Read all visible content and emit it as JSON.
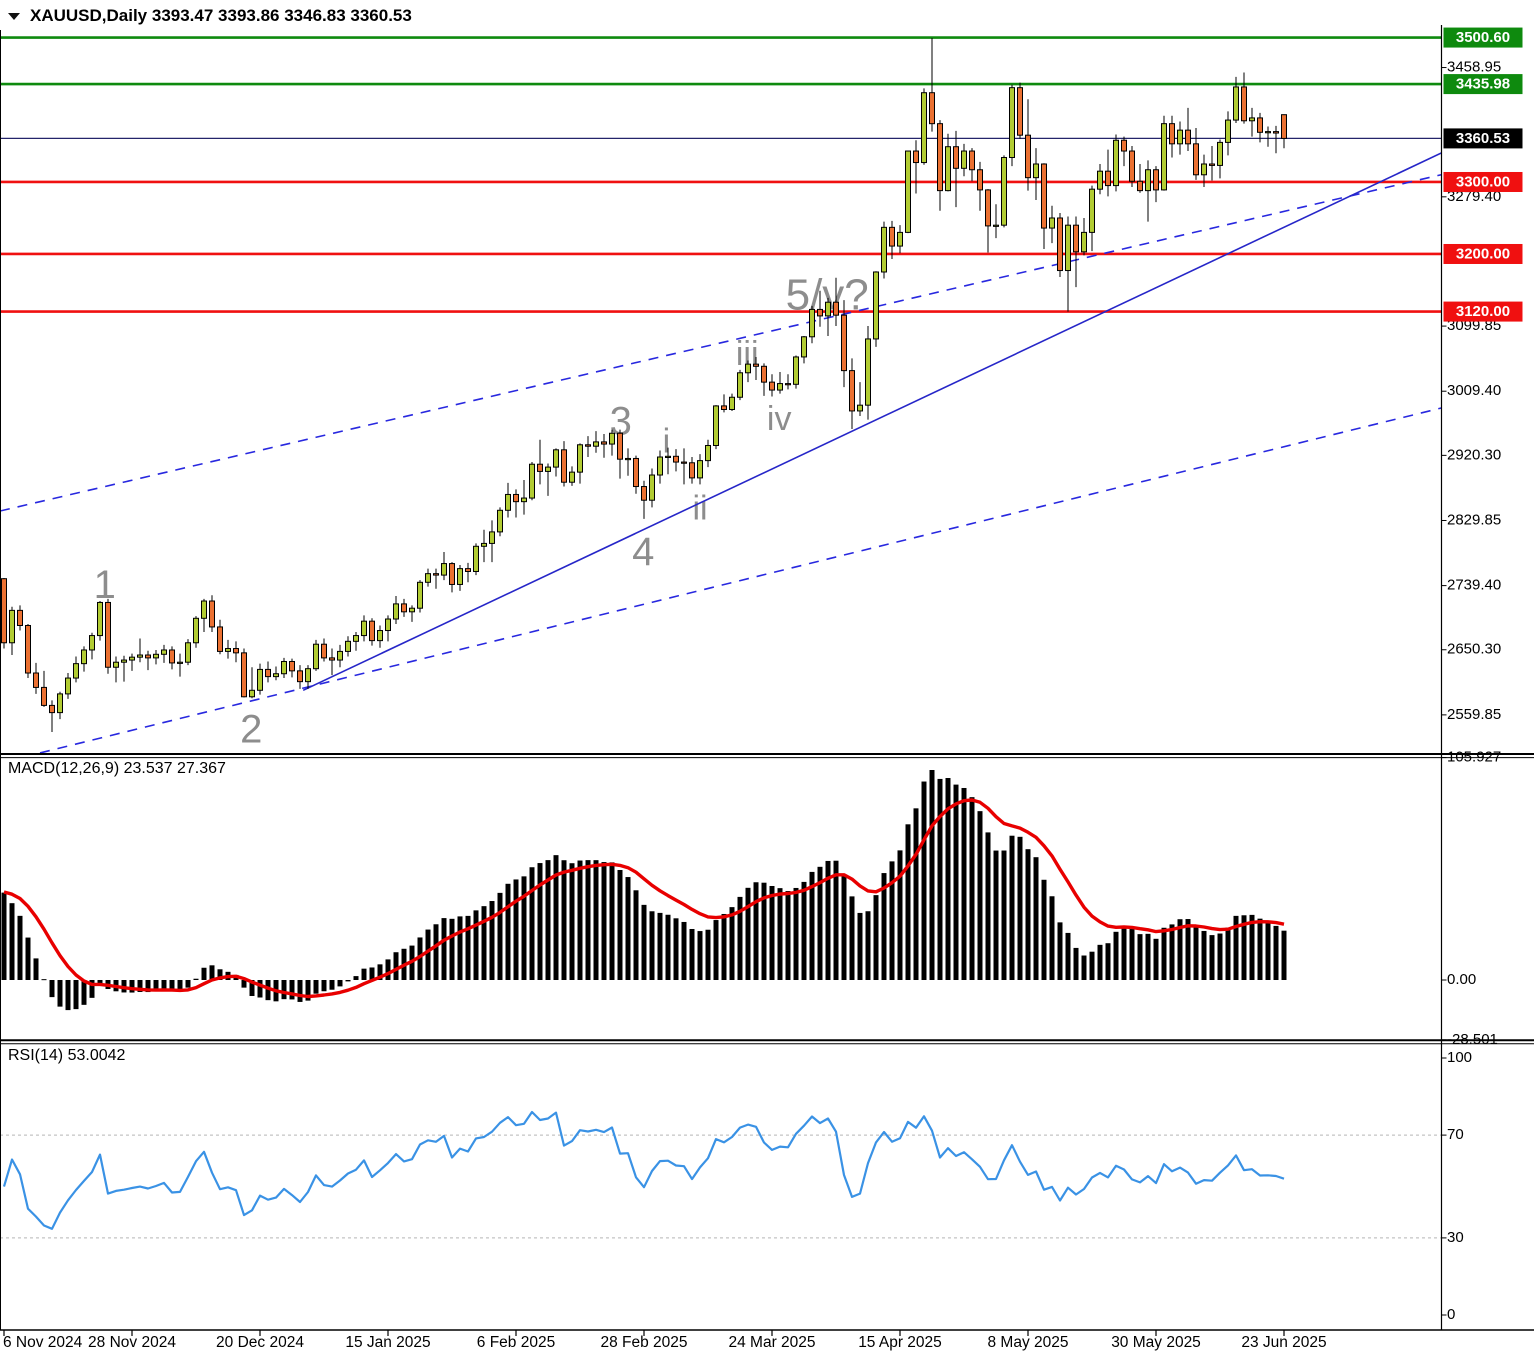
{
  "window": {
    "title": "XAUUSD,Daily  3393.47 3393.86 3346.83 3360.53"
  },
  "chart_data": {
    "type": "candlestick-with-indicators",
    "symbol": "XAUUSD",
    "timeframe": "Daily",
    "ohlc_display": {
      "open": "3393.47",
      "high": "3393.86",
      "low": "3346.83",
      "close": "3360.53"
    },
    "colors": {
      "bull": "#B2CC33",
      "bear": "#EB7132",
      "outline": "#000000",
      "wave_label": "#8D8D8D"
    },
    "price_axis": {
      "visible_range": [
        2506.9,
        3511.1
      ],
      "plain_labels": [
        {
          "value": 3458.95,
          "text": "3458.95"
        },
        {
          "value": 3279.4,
          "text": "3279.40"
        },
        {
          "value": 3099.85,
          "text": "3099.85"
        },
        {
          "value": 3009.4,
          "text": "3009.40"
        },
        {
          "value": 2920.3,
          "text": "2920.30"
        },
        {
          "value": 2829.85,
          "text": "2829.85"
        },
        {
          "value": 2739.4,
          "text": "2739.40"
        },
        {
          "value": 2650.3,
          "text": "2650.30"
        },
        {
          "value": 2559.85,
          "text": "2559.85"
        }
      ],
      "badges": [
        {
          "value": 3500.6,
          "text": "3500.60",
          "bg": "#0E8A0E"
        },
        {
          "value": 3435.98,
          "text": "3435.98",
          "bg": "#0E8A0E"
        },
        {
          "value": 3360.53,
          "text": "3360.53",
          "bg": "#000000"
        },
        {
          "value": 3300.0,
          "text": "3300.00",
          "bg": "#F01010"
        },
        {
          "value": 3200.0,
          "text": "3200.00",
          "bg": "#F01010"
        },
        {
          "value": 3120.0,
          "text": "3120.00",
          "bg": "#F01010"
        }
      ]
    },
    "level_lines": [
      {
        "value": 3500.6,
        "color": "#0E8A0E",
        "width": 2.6
      },
      {
        "value": 3435.98,
        "color": "#0E8A0E",
        "width": 2.6
      },
      {
        "value": 3360.53,
        "color": "#24246A",
        "width": 1.2
      },
      {
        "value": 3300.0,
        "color": "#F01010",
        "width": 2.6
      },
      {
        "value": 3200.0,
        "color": "#F01010",
        "width": 2.6
      },
      {
        "value": 3120.0,
        "color": "#F01010",
        "width": 2.6
      }
    ],
    "trend_lines": [
      {
        "style": "dashed",
        "color": "#2828DF",
        "from": {
          "index": -0.5,
          "price": 2843
        },
        "to": {
          "index": 180,
          "price": 3311
        }
      },
      {
        "style": "dashed",
        "color": "#2828DF",
        "from": {
          "index": 4.5,
          "price": 2507
        },
        "to": {
          "index": 180,
          "price": 2987
        }
      },
      {
        "style": "solid",
        "color": "#2626C8",
        "from": {
          "index": 37.4,
          "price": 2594
        },
        "to": {
          "index": 180,
          "price": 3342
        }
      }
    ],
    "wave_labels": [
      {
        "text": "1",
        "index": 12.6,
        "price": 2737,
        "size": 40
      },
      {
        "text": "2",
        "index": 30.9,
        "price": 2536,
        "size": 40
      },
      {
        "text": "3",
        "index": 77.1,
        "price": 2964,
        "size": 40
      },
      {
        "text": "4",
        "index": 79.9,
        "price": 2783,
        "size": 40
      },
      {
        "text": "i",
        "index": 82.8,
        "price": 2937,
        "size": 34
      },
      {
        "text": "ii",
        "index": 87.0,
        "price": 2844,
        "size": 34
      },
      {
        "text": "iii",
        "index": 92.9,
        "price": 3058,
        "size": 34
      },
      {
        "text": "iv",
        "index": 96.9,
        "price": 2968,
        "size": 34
      },
      {
        "text": "5/v?",
        "index": 102.9,
        "price": 3139,
        "size": 44
      }
    ],
    "x_axis": {
      "labels": [
        {
          "text": "6 Nov 2024",
          "index": 0
        },
        {
          "text": "28 Nov 2024",
          "index": 16
        },
        {
          "text": "20 Dec 2024",
          "index": 32
        },
        {
          "text": "15 Jan 2025",
          "index": 48
        },
        {
          "text": "6 Feb 2025",
          "index": 64
        },
        {
          "text": "28 Feb 2025",
          "index": 80
        },
        {
          "text": "24 Mar 2025",
          "index": 96
        },
        {
          "text": "15 Apr 2025",
          "index": 112
        },
        {
          "text": "8 May 2025",
          "index": 128
        },
        {
          "text": "30 May 2025",
          "index": 144
        },
        {
          "text": "23 Jun 2025",
          "index": 160
        }
      ]
    },
    "candles": [
      [
        2749,
        2750,
        2652,
        2660
      ],
      [
        2660,
        2710,
        2643,
        2705
      ],
      [
        2705,
        2712,
        2677,
        2684
      ],
      [
        2684,
        2686,
        2611,
        2618
      ],
      [
        2618,
        2632,
        2589,
        2598
      ],
      [
        2598,
        2621,
        2571,
        2573
      ],
      [
        2573,
        2580,
        2536,
        2563
      ],
      [
        2563,
        2592,
        2554,
        2589
      ],
      [
        2589,
        2618,
        2582,
        2611
      ],
      [
        2611,
        2641,
        2605,
        2631
      ],
      [
        2631,
        2655,
        2620,
        2650
      ],
      [
        2650,
        2674,
        2637,
        2670
      ],
      [
        2670,
        2718,
        2663,
        2716
      ],
      [
        2716,
        2721,
        2617,
        2626
      ],
      [
        2626,
        2641,
        2605,
        2633
      ],
      [
        2633,
        2642,
        2606,
        2636
      ],
      [
        2636,
        2645,
        2621,
        2640
      ],
      [
        2640,
        2666,
        2633,
        2643
      ],
      [
        2643,
        2649,
        2622,
        2639
      ],
      [
        2639,
        2650,
        2630,
        2644
      ],
      [
        2644,
        2657,
        2632,
        2650
      ],
      [
        2650,
        2655,
        2623,
        2632
      ],
      [
        2632,
        2645,
        2613,
        2633
      ],
      [
        2633,
        2665,
        2629,
        2660
      ],
      [
        2660,
        2697,
        2653,
        2694
      ],
      [
        2694,
        2721,
        2675,
        2718
      ],
      [
        2718,
        2726,
        2675,
        2682
      ],
      [
        2682,
        2692,
        2644,
        2648
      ],
      [
        2648,
        2664,
        2638,
        2652
      ],
      [
        2652,
        2662,
        2633,
        2646
      ],
      [
        2646,
        2652,
        2584,
        2585
      ],
      [
        2585,
        2626,
        2583,
        2594
      ],
      [
        2594,
        2631,
        2588,
        2623
      ],
      [
        2623,
        2634,
        2605,
        2613
      ],
      [
        2613,
        2627,
        2608,
        2617
      ],
      [
        2617,
        2639,
        2611,
        2634
      ],
      [
        2634,
        2638,
        2612,
        2621
      ],
      [
        2621,
        2629,
        2596,
        2606
      ],
      [
        2606,
        2629,
        2596,
        2624
      ],
      [
        2624,
        2664,
        2621,
        2658
      ],
      [
        2658,
        2666,
        2634,
        2639
      ],
      [
        2639,
        2652,
        2615,
        2636
      ],
      [
        2636,
        2657,
        2626,
        2648
      ],
      [
        2648,
        2669,
        2641,
        2662
      ],
      [
        2662,
        2675,
        2649,
        2670
      ],
      [
        2670,
        2698,
        2662,
        2690
      ],
      [
        2690,
        2694,
        2656,
        2663
      ],
      [
        2663,
        2684,
        2653,
        2677
      ],
      [
        2677,
        2698,
        2662,
        2693
      ],
      [
        2693,
        2725,
        2686,
        2714
      ],
      [
        2714,
        2721,
        2696,
        2703
      ],
      [
        2703,
        2712,
        2689,
        2708
      ],
      [
        2708,
        2747,
        2702,
        2744
      ],
      [
        2744,
        2763,
        2738,
        2756
      ],
      [
        2756,
        2763,
        2735,
        2754
      ],
      [
        2754,
        2786,
        2747,
        2770
      ],
      [
        2770,
        2772,
        2730,
        2741
      ],
      [
        2741,
        2768,
        2732,
        2763
      ],
      [
        2763,
        2771,
        2744,
        2759
      ],
      [
        2759,
        2798,
        2754,
        2794
      ],
      [
        2794,
        2817,
        2772,
        2798
      ],
      [
        2798,
        2830,
        2772,
        2814
      ],
      [
        2814,
        2848,
        2808,
        2844
      ],
      [
        2844,
        2882,
        2834,
        2866
      ],
      [
        2866,
        2873,
        2834,
        2856
      ],
      [
        2856,
        2886,
        2838,
        2861
      ],
      [
        2861,
        2911,
        2858,
        2908
      ],
      [
        2908,
        2942,
        2880,
        2898
      ],
      [
        2898,
        2909,
        2864,
        2904
      ],
      [
        2904,
        2930,
        2891,
        2928
      ],
      [
        2928,
        2940,
        2877,
        2883
      ],
      [
        2883,
        2905,
        2878,
        2897
      ],
      [
        2897,
        2937,
        2881,
        2935
      ],
      [
        2935,
        2947,
        2918,
        2933
      ],
      [
        2933,
        2954,
        2924,
        2939
      ],
      [
        2939,
        2950,
        2917,
        2936
      ],
      [
        2936,
        2956,
        2920,
        2951
      ],
      [
        2951,
        2956,
        2888,
        2915
      ],
      [
        2915,
        2930,
        2892,
        2916
      ],
      [
        2916,
        2920,
        2867,
        2877
      ],
      [
        2877,
        2885,
        2832,
        2858
      ],
      [
        2858,
        2902,
        2848,
        2893
      ],
      [
        2893,
        2927,
        2881,
        2918
      ],
      [
        2918,
        2931,
        2894,
        2919
      ],
      [
        2919,
        2929,
        2898,
        2911
      ],
      [
        2911,
        2930,
        2880,
        2910
      ],
      [
        2910,
        2918,
        2881,
        2889
      ],
      [
        2889,
        2922,
        2880,
        2913
      ],
      [
        2913,
        2942,
        2904,
        2934
      ],
      [
        2934,
        2990,
        2929,
        2989
      ],
      [
        2989,
        3005,
        2980,
        2984
      ],
      [
        2984,
        3006,
        2982,
        3001
      ],
      [
        3001,
        3039,
        2997,
        3035
      ],
      [
        3035,
        3052,
        3022,
        3047
      ],
      [
        3047,
        3057,
        3025,
        3044
      ],
      [
        3044,
        3048,
        3003,
        3022
      ],
      [
        3022,
        3033,
        3002,
        3011
      ],
      [
        3011,
        3036,
        3006,
        3020
      ],
      [
        3020,
        3033,
        3012,
        3019
      ],
      [
        3019,
        3059,
        3013,
        3057
      ],
      [
        3057,
        3086,
        3048,
        3085
      ],
      [
        3085,
        3128,
        3076,
        3123
      ],
      [
        3123,
        3149,
        3099,
        3114
      ],
      [
        3114,
        3139,
        3086,
        3133
      ],
      [
        3133,
        3167,
        3100,
        3115
      ],
      [
        3115,
        3136,
        3015,
        3038
      ],
      [
        3038,
        3055,
        2957,
        2982
      ],
      [
        2982,
        3022,
        2975,
        2990
      ],
      [
        2990,
        3100,
        2970,
        3082
      ],
      [
        3082,
        3176,
        3071,
        3175
      ],
      [
        3175,
        3245,
        3166,
        3237
      ],
      [
        3237,
        3246,
        3193,
        3211
      ],
      [
        3211,
        3240,
        3201,
        3230
      ],
      [
        3230,
        3343,
        3229,
        3343
      ],
      [
        3343,
        3358,
        3284,
        3327
      ],
      [
        3327,
        3430,
        3324,
        3424
      ],
      [
        3424,
        3500,
        3370,
        3381
      ],
      [
        3381,
        3386,
        3260,
        3288
      ],
      [
        3288,
        3367,
        3287,
        3349
      ],
      [
        3349,
        3371,
        3265,
        3319
      ],
      [
        3319,
        3353,
        3308,
        3343
      ],
      [
        3343,
        3347,
        3301,
        3317
      ],
      [
        3317,
        3328,
        3260,
        3289
      ],
      [
        3289,
        3290,
        3202,
        3239
      ],
      [
        3239,
        3269,
        3222,
        3240
      ],
      [
        3240,
        3337,
        3237,
        3334
      ],
      [
        3334,
        3435,
        3322,
        3431
      ],
      [
        3431,
        3438,
        3360,
        3365
      ],
      [
        3365,
        3415,
        3288,
        3306
      ],
      [
        3306,
        3347,
        3275,
        3325
      ],
      [
        3325,
        3326,
        3207,
        3236
      ],
      [
        3236,
        3267,
        3215,
        3250
      ],
      [
        3250,
        3257,
        3168,
        3177
      ],
      [
        3177,
        3252,
        3120,
        3240
      ],
      [
        3240,
        3252,
        3154,
        3203
      ],
      [
        3203,
        3250,
        3198,
        3230
      ],
      [
        3230,
        3295,
        3204,
        3290
      ],
      [
        3290,
        3325,
        3283,
        3315
      ],
      [
        3315,
        3345,
        3280,
        3295
      ],
      [
        3295,
        3366,
        3287,
        3358
      ],
      [
        3358,
        3363,
        3322,
        3343
      ],
      [
        3343,
        3350,
        3293,
        3301
      ],
      [
        3301,
        3325,
        3285,
        3288
      ],
      [
        3288,
        3330,
        3245,
        3317
      ],
      [
        3317,
        3322,
        3272,
        3289
      ],
      [
        3289,
        3392,
        3288,
        3381
      ],
      [
        3381,
        3392,
        3334,
        3353
      ],
      [
        3353,
        3384,
        3338,
        3372
      ],
      [
        3372,
        3403,
        3343,
        3353
      ],
      [
        3353,
        3375,
        3303,
        3310
      ],
      [
        3310,
        3338,
        3293,
        3325
      ],
      [
        3325,
        3350,
        3302,
        3323
      ],
      [
        3323,
        3359,
        3305,
        3355
      ],
      [
        3355,
        3398,
        3337,
        3386
      ],
      [
        3386,
        3446,
        3382,
        3432
      ],
      [
        3432,
        3452,
        3381,
        3385
      ],
      [
        3385,
        3403,
        3363,
        3389
      ],
      [
        3389,
        3396,
        3355,
        3369
      ],
      [
        3369,
        3377,
        3349,
        3370
      ],
      [
        3370,
        3378,
        3340,
        3368
      ],
      [
        3393.47,
        3393.86,
        3346.83,
        3360.53
      ]
    ],
    "indicators": {
      "macd": {
        "label": "MACD(12,26,9) 23.537 27.367",
        "params": [
          12,
          26,
          9
        ],
        "current": {
          "main": 23.537,
          "signal": 27.367
        },
        "axis_labels": [
          {
            "value": 105.927,
            "text": "105.927"
          },
          {
            "value": 0,
            "text": "0.00"
          },
          {
            "value": -28.501,
            "text": "-28.501"
          }
        ],
        "seed": {
          "ema12": 2742,
          "ema26": 2690,
          "signal": 42
        },
        "bar_color": "#000000",
        "signal_color": "#E80000"
      },
      "rsi": {
        "label": "RSI(14) 53.0042",
        "period": 14,
        "current": 53.0042,
        "range": [
          0,
          100
        ],
        "levels": [
          70,
          30
        ],
        "axis_labels": [
          {
            "value": 100,
            "text": "100"
          },
          {
            "value": 70,
            "text": "70"
          },
          {
            "value": 30,
            "text": "30"
          },
          {
            "value": 0,
            "text": "0"
          }
        ],
        "seed": {
          "avg_gain": 7,
          "avg_loss": 7
        },
        "line_color": "#3A92E5",
        "level_color": "#C4C4C4"
      }
    }
  }
}
